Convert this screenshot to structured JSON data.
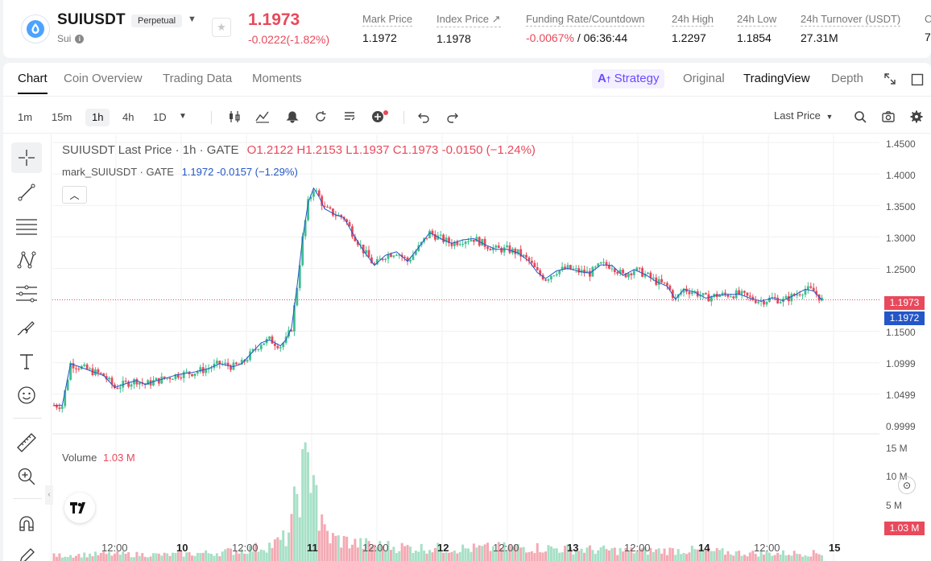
{
  "header": {
    "symbol": "SUIUSDT",
    "contract_type": "Perpetual",
    "coin_name": "Sui",
    "last_price": "1.1973",
    "change": "-0.0222(-1.82%)",
    "stats": [
      {
        "label": "Mark Price",
        "value": "1.1972"
      },
      {
        "label": "Index Price ↗",
        "value": "1.1978"
      },
      {
        "label": "Funding Rate/Countdown",
        "value_red": "-0.0067%",
        "value": " / 06:36:44"
      },
      {
        "label": "24h High",
        "value": "1.2297"
      },
      {
        "label": "24h Low",
        "value": "1.1854"
      },
      {
        "label": "24h Turnover (USDT)",
        "value": "27.31M"
      },
      {
        "label": "C",
        "value": "7"
      }
    ]
  },
  "tabs": {
    "chart": "Chart",
    "coin_overview": "Coin Overview",
    "trading_data": "Trading Data",
    "moments": "Moments",
    "strategy": "Strategy",
    "original": "Original",
    "tradingview": "TradingView",
    "depth": "Depth"
  },
  "toolbar": {
    "intervals": [
      "1m",
      "15m",
      "1h",
      "4h",
      "1D"
    ],
    "active_interval": "1h",
    "price_type": "Last Price"
  },
  "legend": {
    "title": "SUIUSDT Last Price · 1h · GATE",
    "open": "O1.2122",
    "high": "H1.2153",
    "low": "L1.1937",
    "close": "C1.1973",
    "change": "-0.0150 (−1.24%)",
    "mark_label": "mark_SUIUSDT · GATE",
    "mark_value": "1.1972",
    "mark_change": "-0.0157 (−1.29%)",
    "volume_label": "Volume",
    "volume_value": "1.03 M"
  },
  "price_axis": {
    "ticks": [
      "1.4500",
      "1.4000",
      "1.3500",
      "1.3000",
      "1.2500",
      "1.1500",
      "1.0999",
      "1.0499",
      "0.9999"
    ],
    "last_tag": "1.1973",
    "mark_tag": "1.1972",
    "volume_ticks": [
      "15 M",
      "10 M",
      "5 M"
    ],
    "volume_tag": "1.03 M"
  },
  "time_axis": [
    {
      "label": "12:00",
      "bold": false
    },
    {
      "label": "10",
      "bold": true
    },
    {
      "label": "12:00",
      "bold": false
    },
    {
      "label": "11",
      "bold": true
    },
    {
      "label": "12:00",
      "bold": false
    },
    {
      "label": "12",
      "bold": true
    },
    {
      "label": "12:00",
      "bold": false
    },
    {
      "label": "13",
      "bold": true
    },
    {
      "label": "12:00",
      "bold": false
    },
    {
      "label": "14",
      "bold": true
    },
    {
      "label": "12:00",
      "bold": false
    },
    {
      "label": "15",
      "bold": true
    }
  ],
  "colors": {
    "up": "#3dbf8f",
    "down": "#e8495b",
    "mark_line": "#2456c8",
    "accent": "#6b4bff"
  },
  "chart_data": {
    "type": "candlestick",
    "interval": "1h",
    "price_ylim": [
      0.9749,
      1.475
    ],
    "volume_ylim": [
      0,
      16.5
    ],
    "close_path": [
      [
        0,
        1.02
      ],
      [
        3,
        1.02
      ],
      [
        6,
        1.09
      ],
      [
        8,
        1.087
      ],
      [
        12,
        1.08
      ],
      [
        15,
        1.075
      ],
      [
        18,
        1.07
      ],
      [
        22,
        1.05
      ],
      [
        27,
        1.058
      ],
      [
        30,
        1.062
      ],
      [
        33,
        1.055
      ],
      [
        36,
        1.06
      ],
      [
        40,
        1.065
      ],
      [
        45,
        1.072
      ],
      [
        50,
        1.075
      ],
      [
        56,
        1.082
      ],
      [
        60,
        1.09
      ],
      [
        65,
        1.085
      ],
      [
        68,
        1.09
      ],
      [
        72,
        1.11
      ],
      [
        75,
        1.125
      ],
      [
        78,
        1.13
      ],
      [
        82,
        1.12
      ],
      [
        84,
        1.13
      ],
      [
        86,
        1.15
      ],
      [
        88,
        1.22
      ],
      [
        90,
        1.3
      ],
      [
        92,
        1.36
      ],
      [
        94,
        1.385
      ],
      [
        96,
        1.37
      ],
      [
        98,
        1.35
      ],
      [
        102,
        1.34
      ],
      [
        105,
        1.335
      ],
      [
        108,
        1.31
      ],
      [
        112,
        1.28
      ],
      [
        116,
        1.255
      ],
      [
        120,
        1.272
      ],
      [
        124,
        1.278
      ],
      [
        128,
        1.262
      ],
      [
        132,
        1.285
      ],
      [
        136,
        1.31
      ],
      [
        140,
        1.3
      ],
      [
        144,
        1.292
      ],
      [
        148,
        1.298
      ],
      [
        152,
        1.3
      ],
      [
        156,
        1.29
      ],
      [
        160,
        1.282
      ],
      [
        164,
        1.282
      ],
      [
        168,
        1.276
      ],
      [
        172,
        1.262
      ],
      [
        175,
        1.243
      ],
      [
        178,
        1.233
      ],
      [
        182,
        1.246
      ],
      [
        186,
        1.25
      ],
      [
        190,
        1.245
      ],
      [
        194,
        1.242
      ],
      [
        198,
        1.256
      ],
      [
        202,
        1.255
      ],
      [
        206,
        1.238
      ],
      [
        210,
        1.248
      ],
      [
        214,
        1.24
      ],
      [
        218,
        1.228
      ],
      [
        222,
        1.22
      ],
      [
        225,
        1.198
      ],
      [
        228,
        1.215
      ],
      [
        232,
        1.21
      ],
      [
        236,
        1.2
      ],
      [
        240,
        1.205
      ],
      [
        244,
        1.206
      ],
      [
        248,
        1.207
      ],
      [
        252,
        1.2
      ],
      [
        256,
        1.195
      ],
      [
        260,
        1.2
      ],
      [
        264,
        1.196
      ],
      [
        268,
        1.205
      ],
      [
        272,
        1.215
      ],
      [
        275,
        1.212
      ],
      [
        278,
        1.197
      ]
    ],
    "volume_profile": [
      [
        0,
        0.7
      ],
      [
        20,
        0.9
      ],
      [
        40,
        0.8
      ],
      [
        60,
        1.1
      ],
      [
        72,
        1.6
      ],
      [
        80,
        2.2
      ],
      [
        84,
        3.0
      ],
      [
        86,
        4.5
      ],
      [
        88,
        9.0
      ],
      [
        90,
        11.0
      ],
      [
        92,
        11.5
      ],
      [
        93,
        13.0
      ],
      [
        94,
        14.5
      ],
      [
        96,
        5.0
      ],
      [
        100,
        3.0
      ],
      [
        110,
        2.2
      ],
      [
        130,
        1.7
      ],
      [
        150,
        1.6
      ],
      [
        170,
        1.8
      ],
      [
        190,
        1.5
      ],
      [
        210,
        1.3
      ],
      [
        230,
        1.4
      ],
      [
        250,
        1.0
      ],
      [
        278,
        1.0
      ]
    ]
  }
}
